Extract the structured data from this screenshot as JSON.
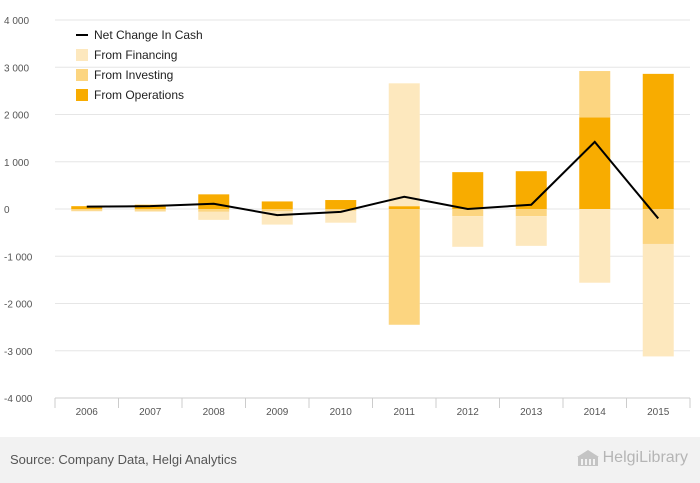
{
  "chart_data": {
    "type": "bar",
    "stacked": true,
    "categories": [
      "2006",
      "2007",
      "2008",
      "2009",
      "2010",
      "2011",
      "2012",
      "2013",
      "2014",
      "2015"
    ],
    "series": [
      {
        "name": "Net Change In Cash",
        "kind": "line",
        "color": "#000000",
        "values": [
          50,
          60,
          110,
          -130,
          -60,
          260,
          0,
          90,
          1420,
          -200
        ]
      },
      {
        "name": "From Financing",
        "kind": "bar",
        "color": "#fde8be",
        "values": [
          -10,
          -20,
          -170,
          -280,
          -250,
          2600,
          -650,
          -630,
          -1560,
          -2380
        ]
      },
      {
        "name": "From Investing",
        "kind": "bar",
        "color": "#fcd580",
        "values": [
          -40,
          -40,
          -60,
          -50,
          -40,
          -2450,
          -150,
          -150,
          980,
          -740
        ]
      },
      {
        "name": "From Operations",
        "kind": "bar",
        "color": "#f8ac00",
        "values": [
          60,
          90,
          310,
          160,
          190,
          60,
          780,
          800,
          1940,
          2860
        ]
      }
    ],
    "ylim": [
      -4000,
      4000
    ],
    "yticks": [
      -4000,
      -3000,
      -2000,
      -1000,
      0,
      1000,
      2000,
      3000,
      4000
    ],
    "ytick_labels": [
      "-4 000",
      "-3 000",
      "-2 000",
      "-1 000",
      "0",
      "1 000",
      "2 000",
      "3 000",
      "4 000"
    ],
    "grid": true,
    "legend_position": "top-left"
  },
  "footer": {
    "source": "Source: Company Data, Helgi Analytics",
    "logo_text": "HelgiLibrary",
    "logo_icon": "building-icon"
  }
}
